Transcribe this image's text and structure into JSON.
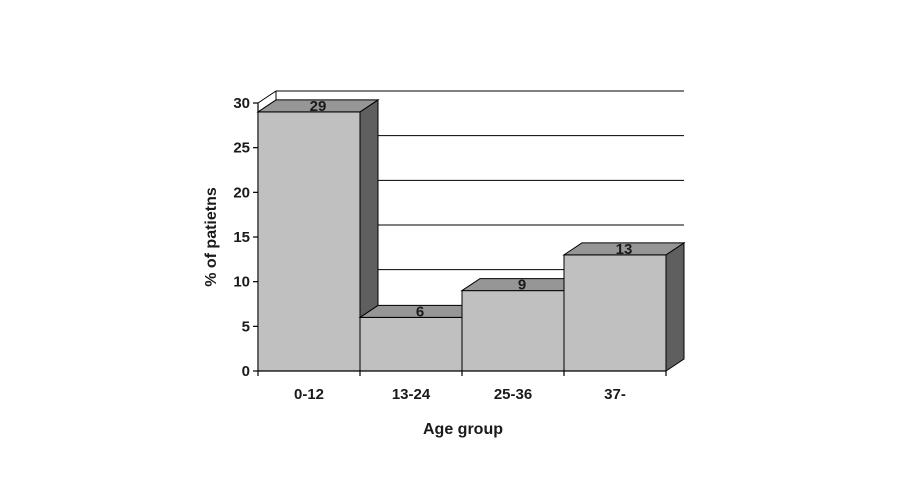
{
  "chart_data": {
    "type": "bar",
    "title": "",
    "xlabel": "Age group",
    "ylabel": "% of patietns",
    "categories": [
      "0-12",
      "13-24",
      "25-36",
      "37-"
    ],
    "values": [
      29,
      6,
      9,
      13
    ],
    "ylim": [
      0,
      30
    ],
    "yticks": [
      0,
      5,
      10,
      15,
      20,
      25,
      30
    ],
    "grid": true,
    "legend": "none",
    "style": "3d",
    "colors": {
      "front": "#c0c0c0",
      "top": "#969696",
      "side": "#5f5f5f",
      "grid": "#000000"
    }
  }
}
